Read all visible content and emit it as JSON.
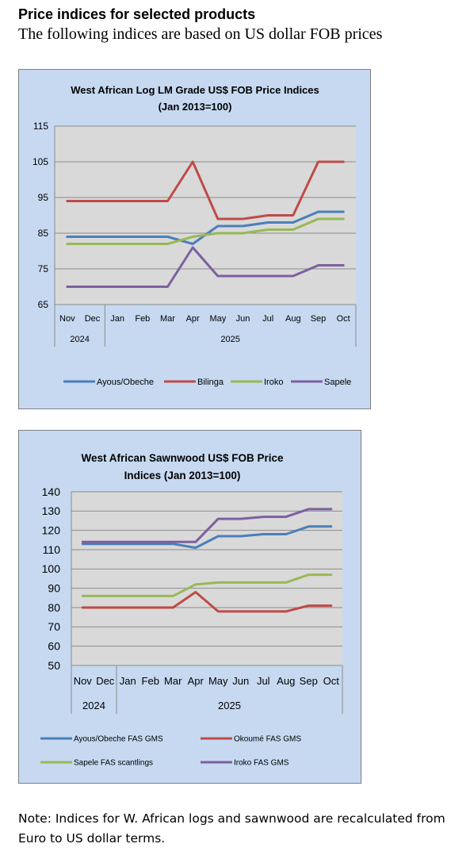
{
  "page": {
    "heading": "Price indices for selected products",
    "subheading": "The following indices are based on US dollar FOB prices",
    "note": "Note: Indices for W. African logs and sawnwood are recalculated from Euro to US dollar terms."
  },
  "chart_data": [
    {
      "type": "line",
      "title_lines": [
        "West African Log LM Grade US$ FOB Price Indices",
        "(Jan 2013=100)"
      ],
      "categories": [
        "Nov",
        "Dec",
        "Jan",
        "Feb",
        "Mar",
        "Apr",
        "May",
        "Jun",
        "Jul",
        "Aug",
        "Sep",
        "Oct"
      ],
      "years": [
        {
          "label": "2024",
          "span": 2
        },
        {
          "label": "2025",
          "span": 10
        }
      ],
      "ylim": [
        65,
        115
      ],
      "yticks": [
        65,
        75,
        85,
        95,
        105,
        115
      ],
      "grid": true,
      "legend_position": "bottom",
      "series": [
        {
          "name": "Ayous/Obeche",
          "color": "#4a7ebb",
          "values": [
            84,
            84,
            84,
            84,
            84,
            82,
            87,
            87,
            88,
            88,
            91,
            91
          ]
        },
        {
          "name": "Bilinga",
          "color": "#be4b48",
          "values": [
            94,
            94,
            94,
            94,
            94,
            105,
            89,
            89,
            90,
            90,
            105,
            105
          ]
        },
        {
          "name": "Iroko",
          "color": "#98b954",
          "values": [
            82,
            82,
            82,
            82,
            82,
            84,
            85,
            85,
            86,
            86,
            89,
            89
          ]
        },
        {
          "name": "Sapele",
          "color": "#7d60a0",
          "values": [
            70,
            70,
            70,
            70,
            70,
            81,
            73,
            73,
            73,
            73,
            76,
            76
          ]
        }
      ]
    },
    {
      "type": "line",
      "title_lines": [
        "West African Sawnwood US$ FOB Price",
        "Indices (Jan 2013=100)"
      ],
      "categories": [
        "Nov",
        "Dec",
        "Jan",
        "Feb",
        "Mar",
        "Apr",
        "May",
        "Jun",
        "Jul",
        "Aug",
        "Sep",
        "Oct"
      ],
      "years": [
        {
          "label": "2024",
          "span": 2
        },
        {
          "label": "2025",
          "span": 10
        }
      ],
      "ylim": [
        50,
        140
      ],
      "yticks": [
        50,
        60,
        70,
        80,
        90,
        100,
        110,
        120,
        130,
        140
      ],
      "grid": true,
      "legend_position": "bottom",
      "series": [
        {
          "name": "Ayous/Obeche  FAS GMS",
          "color": "#4a7ebb",
          "values": [
            113,
            113,
            113,
            113,
            113,
            111,
            117,
            117,
            118,
            118,
            122,
            122
          ]
        },
        {
          "name": "Okoumé  FAS GMS",
          "color": "#be4b48",
          "values": [
            80,
            80,
            80,
            80,
            80,
            88,
            78,
            78,
            78,
            78,
            81,
            81
          ]
        },
        {
          "name": "Sapele FAS scantlings",
          "color": "#98b954",
          "values": [
            86,
            86,
            86,
            86,
            86,
            92,
            93,
            93,
            93,
            93,
            97,
            97
          ]
        },
        {
          "name": "Iroko FAS GMS",
          "color": "#7d60a0",
          "values": [
            114,
            114,
            114,
            114,
            114,
            114,
            126,
            126,
            127,
            127,
            131,
            131
          ]
        }
      ]
    }
  ]
}
